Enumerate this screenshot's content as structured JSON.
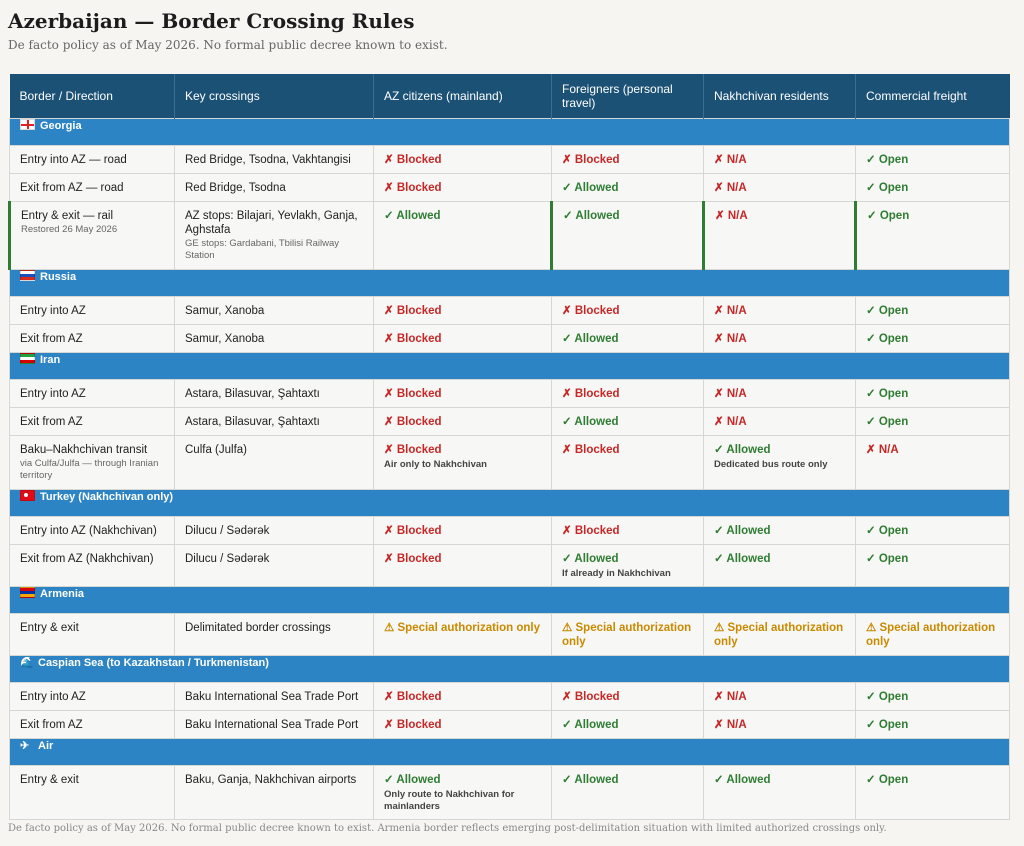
{
  "title": "Azerbaijan — Border Crossing Rules",
  "subtitle": "De facto policy as of May 2026. No formal public decree known to exist.",
  "footer": "De facto policy as of May 2026. No formal public decree known to exist. Armenia border reflects emerging post-delimitation situation with limited authorized crossings only.",
  "columns": [
    "Border / Direction",
    "Key crossings",
    "AZ citizens (mainland)",
    "Foreigners (personal travel)",
    "Nakhchivan residents",
    "Commercial freight"
  ],
  "status_colors": {
    "blocked": "#c62828",
    "allowed": "#2e7d32",
    "special": "#c98a00",
    "header": "#1c5176",
    "section": "#2d84c4"
  },
  "sections": {
    "georgia": {
      "label": "Georgia",
      "icon": "georgia-flag-icon",
      "rows": [
        {
          "direction": "Entry into AZ — road",
          "crossings": "Red Bridge, Tsodna, Vakhtangisi",
          "az": "✗ Blocked",
          "foreign": "✗ Blocked",
          "nakh": "✗ N/A",
          "freight": "✓ Open"
        },
        {
          "direction": "Exit from AZ — road",
          "crossings": "Red Bridge, Tsodna",
          "az": "✗ Blocked",
          "foreign": "✓ Allowed",
          "nakh": "✗ N/A",
          "freight": "✓ Open"
        },
        {
          "direction": "Entry & exit — rail",
          "direction_sub": "Restored 26 May 2026",
          "crossings": "AZ stops: Bilajari, Yevlakh, Ganja, Aghstafa",
          "crossings_sub": "GE stops: Gardabani, Tbilisi Railway Station",
          "az": "✓ Allowed",
          "foreign": "✓ Allowed",
          "nakh": "✗ N/A",
          "freight": "✓ Open"
        }
      ]
    },
    "russia": {
      "label": "Russia",
      "icon": "russia-flag-icon",
      "rows": [
        {
          "direction": "Entry into AZ",
          "crossings": "Samur, Xanoba",
          "az": "✗ Blocked",
          "foreign": "✗ Blocked",
          "nakh": "✗ N/A",
          "freight": "✓ Open"
        },
        {
          "direction": "Exit from AZ",
          "crossings": "Samur, Xanoba",
          "az": "✗ Blocked",
          "foreign": "✓ Allowed",
          "nakh": "✗ N/A",
          "freight": "✓ Open"
        }
      ]
    },
    "iran": {
      "label": "Iran",
      "icon": "iran-flag-icon",
      "rows": [
        {
          "direction": "Entry into AZ",
          "crossings": "Astara, Bilasuvar, Şahtaxtı",
          "az": "✗ Blocked",
          "foreign": "✗ Blocked",
          "nakh": "✗ N/A",
          "freight": "✓ Open"
        },
        {
          "direction": "Exit from AZ",
          "crossings": "Astara, Bilasuvar, Şahtaxtı",
          "az": "✗ Blocked",
          "foreign": "✓ Allowed",
          "nakh": "✗ N/A",
          "freight": "✓ Open"
        },
        {
          "direction": "Baku–Nakhchivan transit",
          "direction_sub": "via Culfa/Julfa — through Iranian territory",
          "crossings": "Culfa (Julfa)",
          "az": "✗ Blocked",
          "az_note": "Air only to Nakhchivan",
          "foreign": "✗ Blocked",
          "nakh": "✓ Allowed",
          "nakh_note": "Dedicated bus route only",
          "freight": "✗ N/A"
        }
      ]
    },
    "turkey": {
      "label": "Turkey (Nakhchivan only)",
      "icon": "turkey-flag-icon",
      "rows": [
        {
          "direction": "Entry into AZ (Nakhchivan)",
          "crossings": "Dilucu / Sədərək",
          "az": "✗ Blocked",
          "foreign": "✗ Blocked",
          "nakh": "✓ Allowed",
          "freight": "✓ Open"
        },
        {
          "direction": "Exit from AZ (Nakhchivan)",
          "crossings": "Dilucu / Sədərək",
          "az": "✗ Blocked",
          "foreign": "✓ Allowed",
          "foreign_note": "If already in Nakhchivan",
          "nakh": "✓ Allowed",
          "freight": "✓ Open"
        }
      ]
    },
    "armenia": {
      "label": "Armenia",
      "icon": "armenia-flag-icon",
      "rows": [
        {
          "direction": "Entry & exit",
          "crossings": "Delimitated border crossings",
          "az": "⚠ Special authorization only",
          "foreign": "⚠ Special authorization only",
          "nakh": "⚠ Special authorization only",
          "freight": "⚠ Special authorization only"
        }
      ]
    },
    "caspian": {
      "label": "Caspian Sea (to Kazakhstan / Turkmenistan)",
      "icon": "wave-icon",
      "rows": [
        {
          "direction": "Entry into AZ",
          "crossings": "Baku International Sea Trade Port",
          "az": "✗ Blocked",
          "foreign": "✗ Blocked",
          "nakh": "✗ N/A",
          "freight": "✓ Open"
        },
        {
          "direction": "Exit from AZ",
          "crossings": "Baku International Sea Trade Port",
          "az": "✗ Blocked",
          "foreign": "✓ Allowed",
          "nakh": "✗ N/A",
          "freight": "✓ Open"
        }
      ]
    },
    "air": {
      "label": "Air",
      "icon": "airplane-icon",
      "rows": [
        {
          "direction": "Entry & exit",
          "crossings": "Baku, Ganja, Nakhchivan airports",
          "az": "✓ Allowed",
          "az_note": "Only route to Nakhchivan for mainlanders",
          "foreign": "✓ Allowed",
          "nakh": "✓ Allowed",
          "freight": "✓ Open"
        }
      ]
    }
  }
}
